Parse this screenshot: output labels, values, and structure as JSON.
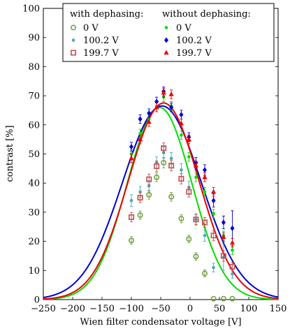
{
  "chart_data": {
    "type": "scatter",
    "xlabel": "Wien filter condensator voltage [V]",
    "ylabel": "contrast [%]",
    "xlim": [
      -250,
      150
    ],
    "ylim": [
      0,
      100
    ],
    "xticks": [
      -250,
      -200,
      -150,
      -100,
      -50,
      0,
      50,
      100,
      150
    ],
    "yticks": [
      0,
      10,
      20,
      30,
      40,
      50,
      60,
      70,
      80,
      90,
      100
    ],
    "grid": false,
    "legend_placement": "top-right",
    "legend": {
      "group_with": "with dephasing:",
      "group_without": "without dephasing:"
    },
    "series": [
      {
        "name": "0 V",
        "group": "with",
        "marker": "circle-open",
        "color": "#77a04a",
        "points": [
          {
            "x": -100,
            "y": 20.3,
            "err": 1.3
          },
          {
            "x": -85,
            "y": 29.0,
            "err": 1.4
          },
          {
            "x": -70,
            "y": 36.0,
            "err": 1.5
          },
          {
            "x": -57,
            "y": 42.0,
            "err": 1.5
          },
          {
            "x": -45,
            "y": 47.0,
            "err": 1.8
          },
          {
            "x": -32,
            "y": 35.3,
            "err": 1.5
          },
          {
            "x": -15,
            "y": 27.8,
            "err": 1.4
          },
          {
            "x": -2,
            "y": 20.8,
            "err": 1.3
          },
          {
            "x": 10,
            "y": 14.8,
            "err": 1.3
          },
          {
            "x": 25,
            "y": 9.0,
            "err": 1.2
          },
          {
            "x": 40,
            "y": 0.3,
            "err": 0
          },
          {
            "x": 57,
            "y": 0.3,
            "err": 0
          },
          {
            "x": 72,
            "y": 0.3,
            "err": 0
          }
        ]
      },
      {
        "name": "100.2 V",
        "group": "with",
        "marker": "dot",
        "color": "#4aa6c0",
        "points": [
          {
            "x": -100,
            "y": 34.0,
            "err": 2.0
          },
          {
            "x": -85,
            "y": 37.0,
            "err": 1.8
          },
          {
            "x": -70,
            "y": 39.0,
            "err": 1.8
          },
          {
            "x": -57,
            "y": 47.0,
            "err": 2.0
          },
          {
            "x": -45,
            "y": 50.5,
            "err": 2.0
          },
          {
            "x": -32,
            "y": 48.5,
            "err": 2.0
          },
          {
            "x": -15,
            "y": 44.5,
            "err": 2.2
          },
          {
            "x": -2,
            "y": 38.5,
            "err": 2.2
          },
          {
            "x": 10,
            "y": 27.5,
            "err": 2.0
          },
          {
            "x": 25,
            "y": 22.0,
            "err": 2.0
          },
          {
            "x": 40,
            "y": 11.0,
            "err": 1.5
          },
          {
            "x": 57,
            "y": 14.5,
            "err": 4.5
          },
          {
            "x": 72,
            "y": 8.8,
            "err": 1.5
          }
        ]
      },
      {
        "name": "199.7 V",
        "group": "with",
        "marker": "square-open",
        "color": "#c0504d",
        "points": [
          {
            "x": -100,
            "y": 28.3,
            "err": 1.6
          },
          {
            "x": -85,
            "y": 35.0,
            "err": 1.7
          },
          {
            "x": -70,
            "y": 41.3,
            "err": 1.8
          },
          {
            "x": -57,
            "y": 45.8,
            "err": 1.8
          },
          {
            "x": -45,
            "y": 52.0,
            "err": 1.8
          },
          {
            "x": -32,
            "y": 46.0,
            "err": 1.8
          },
          {
            "x": -15,
            "y": 41.5,
            "err": 1.8
          },
          {
            "x": -2,
            "y": 37.0,
            "err": 1.8
          },
          {
            "x": 10,
            "y": 27.5,
            "err": 1.7
          },
          {
            "x": 25,
            "y": 26.5,
            "err": 1.7
          },
          {
            "x": 40,
            "y": 22.0,
            "err": 1.8
          },
          {
            "x": 57,
            "y": 15.0,
            "err": 1.8
          },
          {
            "x": 72,
            "y": 11.3,
            "err": 1.5
          }
        ]
      },
      {
        "name": "0 V",
        "group": "without",
        "marker": "dot",
        "color": "#00dd00",
        "fit": {
          "amplitude": 66.0,
          "center": -52.0,
          "sigma": 55.0
        },
        "points": [
          {
            "x": -100,
            "y": 50.0,
            "err": 1.5
          },
          {
            "x": -85,
            "y": 57.0,
            "err": 1.5
          },
          {
            "x": -70,
            "y": 62.0,
            "err": 1.5
          },
          {
            "x": -57,
            "y": 66.0,
            "err": 1.5
          },
          {
            "x": -45,
            "y": 69.5,
            "err": 1.5
          },
          {
            "x": -32,
            "y": 66.5,
            "err": 1.5
          },
          {
            "x": -15,
            "y": 56.5,
            "err": 1.5
          },
          {
            "x": -2,
            "y": 49.0,
            "err": 1.5
          },
          {
            "x": 10,
            "y": 42.0,
            "err": 1.5
          },
          {
            "x": 25,
            "y": 37.0,
            "err": 1.5
          },
          {
            "x": 40,
            "y": 29.5,
            "err": 1.5
          },
          {
            "x": 57,
            "y": 22.0,
            "err": 1.5
          },
          {
            "x": 72,
            "y": 17.0,
            "err": 1.5
          }
        ]
      },
      {
        "name": "100.2 V",
        "group": "without",
        "marker": "diamond",
        "color": "#0000cc",
        "fit": {
          "amplitude": 66.5,
          "center": -48.0,
          "sigma": 67.0
        },
        "points": [
          {
            "x": -100,
            "y": 52.5,
            "err": 1.5
          },
          {
            "x": -85,
            "y": 62.0,
            "err": 1.5
          },
          {
            "x": -70,
            "y": 64.0,
            "err": 1.5
          },
          {
            "x": -57,
            "y": 68.0,
            "err": 1.5
          },
          {
            "x": -45,
            "y": 71.5,
            "err": 1.5
          },
          {
            "x": -32,
            "y": 66.0,
            "err": 1.5
          },
          {
            "x": -15,
            "y": 63.5,
            "err": 1.5
          },
          {
            "x": -2,
            "y": 55.8,
            "err": 1.5
          },
          {
            "x": 10,
            "y": 47.0,
            "err": 1.8
          },
          {
            "x": 25,
            "y": 44.5,
            "err": 1.8
          },
          {
            "x": 40,
            "y": 34.0,
            "err": 2.2
          },
          {
            "x": 57,
            "y": 26.5,
            "err": 2.2
          },
          {
            "x": 72,
            "y": 24.5,
            "err": 6.0
          }
        ]
      },
      {
        "name": "199.7 V",
        "group": "without",
        "marker": "triangle",
        "color": "#ee0000",
        "fit": {
          "amplitude": 67.5,
          "center": -45.0,
          "sigma": 60.0
        },
        "points": [
          {
            "x": -100,
            "y": 48.5,
            "err": 1.5
          },
          {
            "x": -85,
            "y": 55.0,
            "err": 1.5
          },
          {
            "x": -70,
            "y": 61.0,
            "err": 1.5
          },
          {
            "x": -57,
            "y": 66.0,
            "err": 1.5
          },
          {
            "x": -45,
            "y": 71.0,
            "err": 1.5
          },
          {
            "x": -32,
            "y": 70.5,
            "err": 1.5
          },
          {
            "x": -15,
            "y": 60.5,
            "err": 1.5
          },
          {
            "x": -2,
            "y": 55.0,
            "err": 1.5
          },
          {
            "x": 10,
            "y": 46.0,
            "err": 1.5
          },
          {
            "x": 25,
            "y": 42.0,
            "err": 1.5
          },
          {
            "x": 40,
            "y": 37.0,
            "err": 1.5
          },
          {
            "x": 57,
            "y": 21.5,
            "err": 1.5
          },
          {
            "x": 72,
            "y": 19.5,
            "err": 1.5
          }
        ]
      }
    ]
  }
}
